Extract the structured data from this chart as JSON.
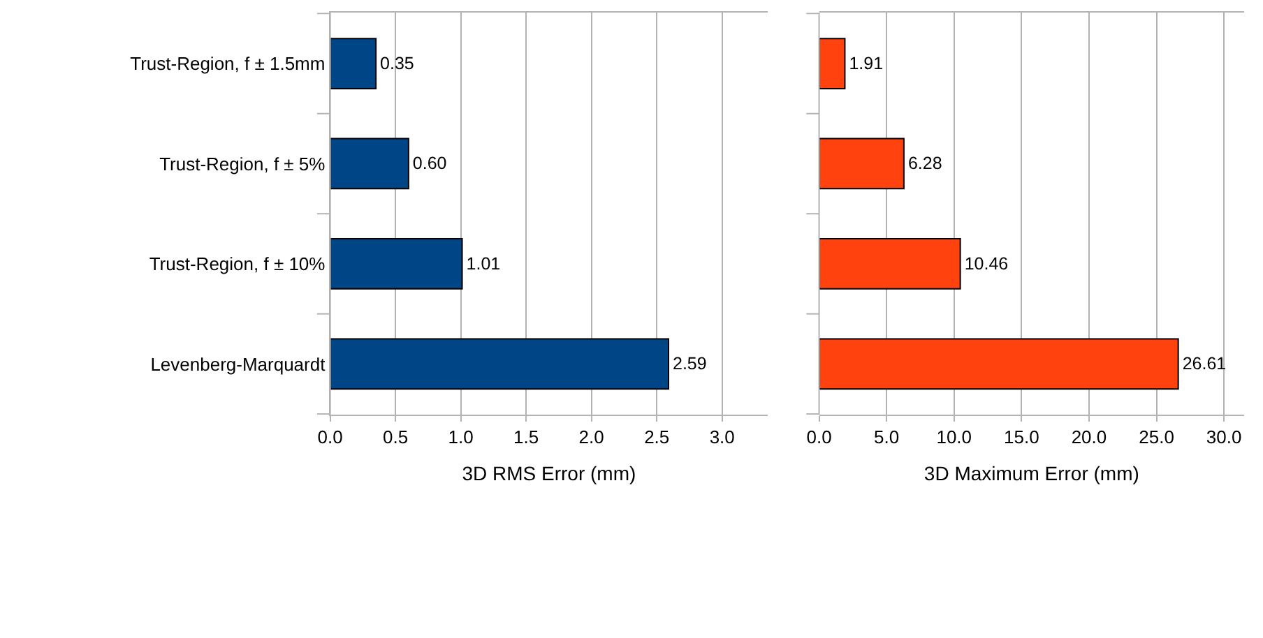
{
  "chart_data": [
    {
      "type": "bar",
      "orientation": "horizontal",
      "xlabel": "3D RMS Error (mm)",
      "categories": [
        "Trust-Region, f ± 1.5mm",
        "Trust-Region, f ± 5%",
        "Trust-Region, f ± 10%",
        "Levenberg-Marquardt"
      ],
      "values": [
        0.35,
        0.6,
        1.01,
        2.59
      ],
      "value_labels": [
        "0.35",
        "0.60",
        "1.01",
        "2.59"
      ],
      "color": "#004586",
      "xlim": [
        0,
        3.35
      ],
      "xticks": [
        {
          "value": 0,
          "label": "0.0"
        },
        {
          "value": 0.5,
          "label": "0.5"
        },
        {
          "value": 1,
          "label": "1.0"
        },
        {
          "value": 1.5,
          "label": "1.5"
        },
        {
          "value": 2,
          "label": "2.0"
        },
        {
          "value": 2.5,
          "label": "2.5"
        },
        {
          "value": 3,
          "label": "3.0"
        }
      ],
      "grid": "x"
    },
    {
      "type": "bar",
      "orientation": "horizontal",
      "xlabel": "3D Maximum Error (mm)",
      "categories": [
        "Trust-Region, f ± 1.5mm",
        "Trust-Region, f ± 5%",
        "Trust-Region, f ± 10%",
        "Levenberg-Marquardt"
      ],
      "values": [
        1.91,
        6.28,
        10.46,
        26.61
      ],
      "value_labels": [
        "1.91",
        "6.28",
        "10.46",
        "26.61"
      ],
      "color": "#ff420e",
      "xlim": [
        0,
        31.5
      ],
      "xticks": [
        {
          "value": 0,
          "label": "0.0"
        },
        {
          "value": 5,
          "label": "5.0"
        },
        {
          "value": 10,
          "label": "10.0"
        },
        {
          "value": 15,
          "label": "15.0"
        },
        {
          "value": 20,
          "label": "20.0"
        },
        {
          "value": 25,
          "label": "25.0"
        },
        {
          "value": 30,
          "label": "30.0"
        }
      ],
      "grid": "x",
      "tick_labels": "x"
    }
  ]
}
